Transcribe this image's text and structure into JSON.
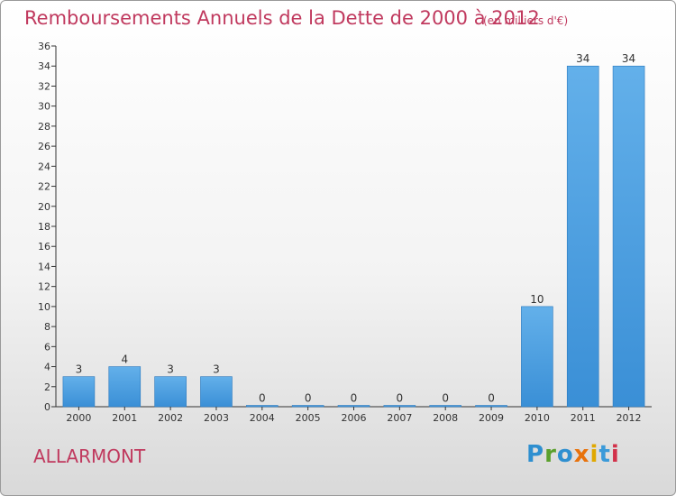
{
  "title": "Remboursements Annuels de la Dette de 2000 à 2012",
  "subtitle": "(en milliers d'€)",
  "commune": "ALLARMONT",
  "logo": {
    "p": "P",
    "r": "r",
    "o": "o",
    "x": "x",
    "i": "i",
    "t": "t",
    "i2": "i"
  },
  "colors": {
    "bar": "#3a8fd6",
    "bar_light": "#63b0ea",
    "title": "#c0395e",
    "axis": "#333333"
  },
  "chart_data": {
    "type": "bar",
    "categories": [
      "2000",
      "2001",
      "2002",
      "2003",
      "2004",
      "2005",
      "2006",
      "2007",
      "2008",
      "2009",
      "2010",
      "2011",
      "2012"
    ],
    "values": [
      3,
      4,
      3,
      3,
      0,
      0,
      0,
      0,
      0,
      0,
      10,
      34,
      34
    ],
    "ylim": [
      0,
      36
    ],
    "yticks": [
      0,
      2,
      4,
      6,
      8,
      10,
      12,
      14,
      16,
      18,
      20,
      22,
      24,
      26,
      28,
      30,
      32,
      34,
      36
    ],
    "grid": false,
    "data_labels": true
  }
}
